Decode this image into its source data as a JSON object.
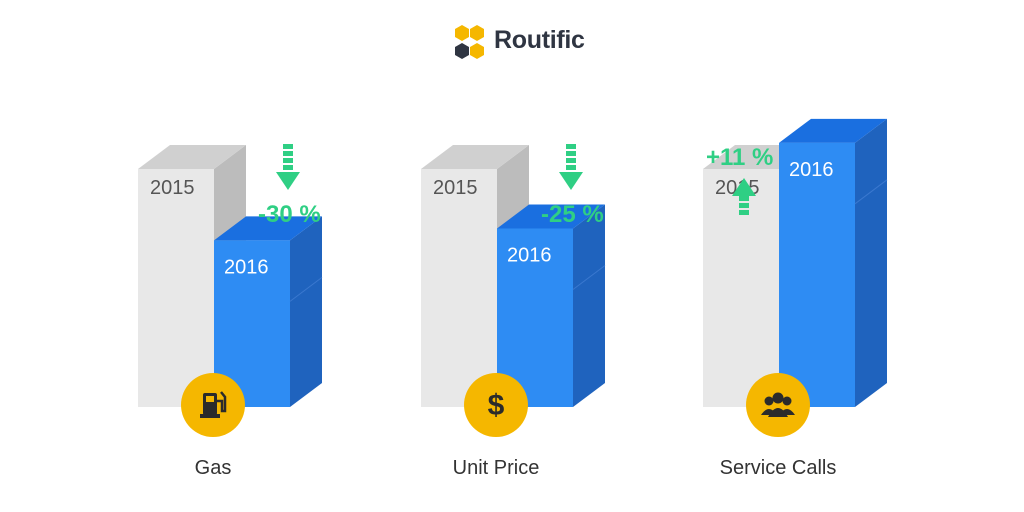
{
  "brand": {
    "name": "Routific",
    "colors": {
      "hex_yellow": "#f5b700",
      "hex_dark": "#2f3542"
    }
  },
  "colors": {
    "bar_2015_front": "#e8e8e8",
    "bar_2015_side": "#bcbcbc",
    "bar_2015_top": "#d0d0d0",
    "bar_2016_front": "#2e8cf3",
    "bar_2016_side": "#1f63be",
    "bar_2016_top": "#1a6fe0",
    "change": "#2fcf84",
    "icon_badge": "#f5b700",
    "label_text": "#333333"
  },
  "chart_data": {
    "type": "bar",
    "style": "3d-grouped",
    "categories": [
      "Gas",
      "Unit Price",
      "Service Calls"
    ],
    "series": [
      {
        "name": "2015",
        "values": [
          100,
          100,
          100
        ]
      },
      {
        "name": "2016",
        "values": [
          70,
          75,
          111
        ]
      }
    ],
    "changes": [
      {
        "label": "-30 %",
        "direction": "down"
      },
      {
        "label": "-25 %",
        "direction": "down"
      },
      {
        "label": "+11 %",
        "direction": "up"
      }
    ],
    "icons": [
      "gas-pump-icon",
      "dollar-icon",
      "people-icon"
    ],
    "title": "",
    "xlabel": "",
    "ylabel": "",
    "grid": false,
    "legend": "none"
  }
}
